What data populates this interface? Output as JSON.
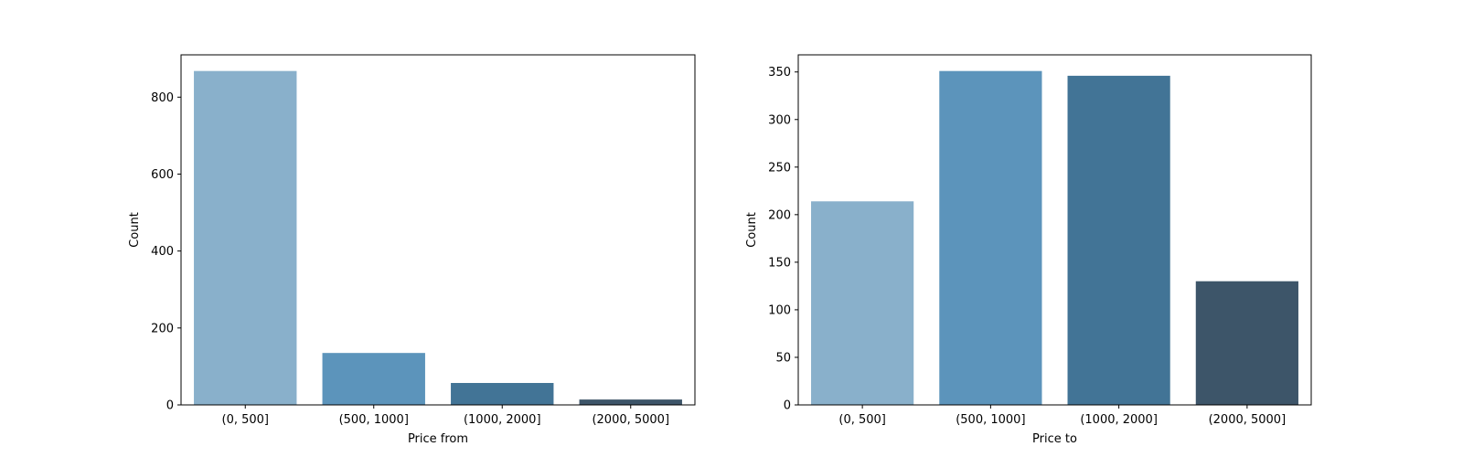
{
  "chart_data": [
    {
      "type": "bar",
      "xlabel": "Price from",
      "ylabel": "Count",
      "categories": [
        "(0, 500]",
        "(500, 1000]",
        "(1000, 2000]",
        "(2000, 5000]"
      ],
      "values": [
        868,
        135,
        57,
        14
      ],
      "ylim": [
        0,
        910
      ],
      "yticks": [
        0,
        200,
        400,
        600,
        800
      ],
      "colors": [
        "#89b0cb",
        "#5c94bb",
        "#427496",
        "#3d5569"
      ],
      "grid": false,
      "legend": "none"
    },
    {
      "type": "bar",
      "xlabel": "Price to",
      "ylabel": "Count",
      "categories": [
        "(0, 500]",
        "(500, 1000]",
        "(1000, 2000]",
        "(2000, 5000]"
      ],
      "values": [
        214,
        351,
        346,
        130
      ],
      "ylim": [
        0,
        368
      ],
      "yticks": [
        0,
        50,
        100,
        150,
        200,
        250,
        300,
        350
      ],
      "colors": [
        "#89b0cb",
        "#5c94bb",
        "#427496",
        "#3d5569"
      ],
      "grid": false,
      "legend": "none"
    }
  ]
}
